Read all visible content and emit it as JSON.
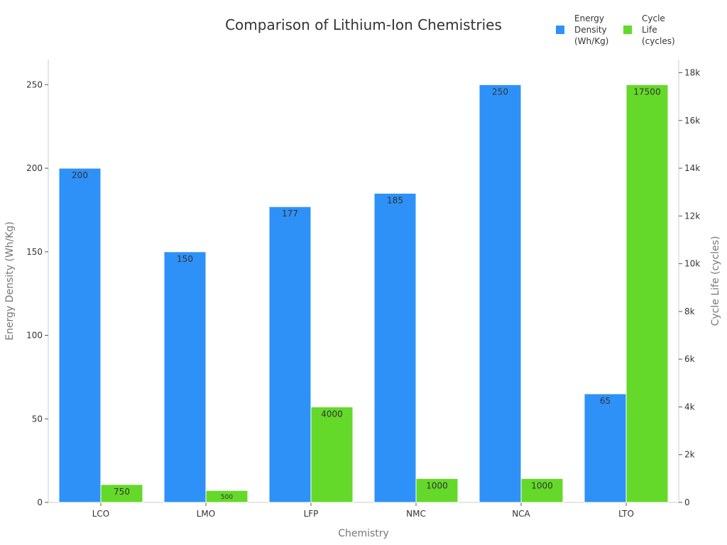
{
  "chart_data": {
    "type": "bar",
    "title": "Comparison of Lithium-Ion Chemistries",
    "xlabel": "Chemistry",
    "ylabel": "Energy Density (Wh/Kg)",
    "y2label": "Cycle Life (cycles)",
    "categories": [
      "LCO",
      "LMO",
      "LFP",
      "NMC",
      "NCA",
      "LTO"
    ],
    "series": [
      {
        "name_lines": [
          "Energy",
          "Density",
          "(Wh/Kg)"
        ],
        "axis": "left",
        "color": "#2e91f8",
        "values": [
          200,
          150,
          177,
          185,
          250,
          65
        ],
        "labels": [
          "200",
          "150",
          "177",
          "185",
          "250",
          "65"
        ]
      },
      {
        "name_lines": [
          "Cycle",
          "Life",
          "(cycles)"
        ],
        "axis": "right",
        "color": "#64d929",
        "values": [
          750,
          500,
          4000,
          1000,
          1000,
          17500
        ],
        "labels": [
          "750",
          "500",
          "4000",
          "1000",
          "1000",
          "17500"
        ]
      }
    ],
    "ylim": [
      0,
      265
    ],
    "yticks": [
      0,
      50,
      100,
      150,
      200,
      250
    ],
    "y2lim": [
      0,
      18550
    ],
    "y2ticks": [
      0,
      2000,
      4000,
      6000,
      8000,
      10000,
      12000,
      14000,
      16000,
      18000
    ],
    "y2ticklabels": [
      "0",
      "2k",
      "4k",
      "6k",
      "8k",
      "10k",
      "12k",
      "14k",
      "16k",
      "18k"
    ],
    "grid": false,
    "legend": "top-right"
  }
}
